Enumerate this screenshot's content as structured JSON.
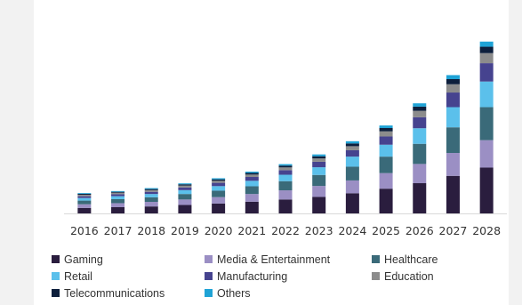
{
  "chart_data": {
    "type": "bar",
    "stacked": true,
    "title": "",
    "xlabel": "",
    "ylabel": "",
    "ylim": [
      0,
      100
    ],
    "grid": false,
    "legend_position": "bottom",
    "categories": [
      "2016",
      "2017",
      "2018",
      "2019",
      "2020",
      "2021",
      "2022",
      "2023",
      "2024",
      "2025",
      "2026",
      "2027",
      "2028"
    ],
    "series": [
      {
        "name": "Gaming",
        "color": "#2a1d3e",
        "values": [
          3.0,
          3.4,
          3.8,
          4.6,
          5.4,
          6.4,
          7.6,
          9.0,
          11.0,
          13.5,
          16.5,
          20.5,
          25.0
        ]
      },
      {
        "name": "Media & Entertainment",
        "color": "#9b8fc4",
        "values": [
          2.0,
          2.2,
          2.5,
          3.0,
          3.5,
          4.2,
          5.0,
          6.0,
          7.0,
          8.5,
          10.5,
          12.5,
          15.0
        ]
      },
      {
        "name": "Healthcare",
        "color": "#3a6a79",
        "values": [
          2.0,
          2.2,
          2.5,
          3.0,
          3.5,
          4.2,
          5.0,
          6.0,
          7.5,
          9.0,
          11.0,
          14.0,
          18.0
        ]
      },
      {
        "name": "Retail",
        "color": "#5bc0eb",
        "values": [
          1.4,
          1.6,
          1.8,
          2.1,
          2.5,
          3.0,
          3.5,
          4.2,
          5.5,
          6.5,
          8.5,
          11.0,
          14.0
        ]
      },
      {
        "name": "Manufacturing",
        "color": "#46438f",
        "values": [
          1.0,
          1.1,
          1.2,
          1.5,
          1.8,
          2.1,
          2.5,
          3.0,
          3.5,
          4.5,
          6.0,
          8.0,
          10.0
        ]
      },
      {
        "name": "Education",
        "color": "#8c8c8c",
        "values": [
          0.8,
          0.8,
          0.9,
          1.0,
          1.1,
          1.3,
          1.5,
          1.8,
          2.2,
          2.8,
          3.5,
          4.5,
          5.5
        ]
      },
      {
        "name": "Telecommunications",
        "color": "#0d1f3c",
        "values": [
          0.5,
          0.5,
          0.6,
          0.7,
          0.8,
          0.9,
          1.0,
          1.2,
          1.5,
          1.8,
          2.3,
          2.8,
          3.5
        ]
      },
      {
        "name": "Others",
        "color": "#1fa3d6",
        "values": [
          0.4,
          0.4,
          0.5,
          0.5,
          0.6,
          0.7,
          0.8,
          1.0,
          1.2,
          1.4,
          1.8,
          2.2,
          2.8
        ]
      }
    ]
  }
}
